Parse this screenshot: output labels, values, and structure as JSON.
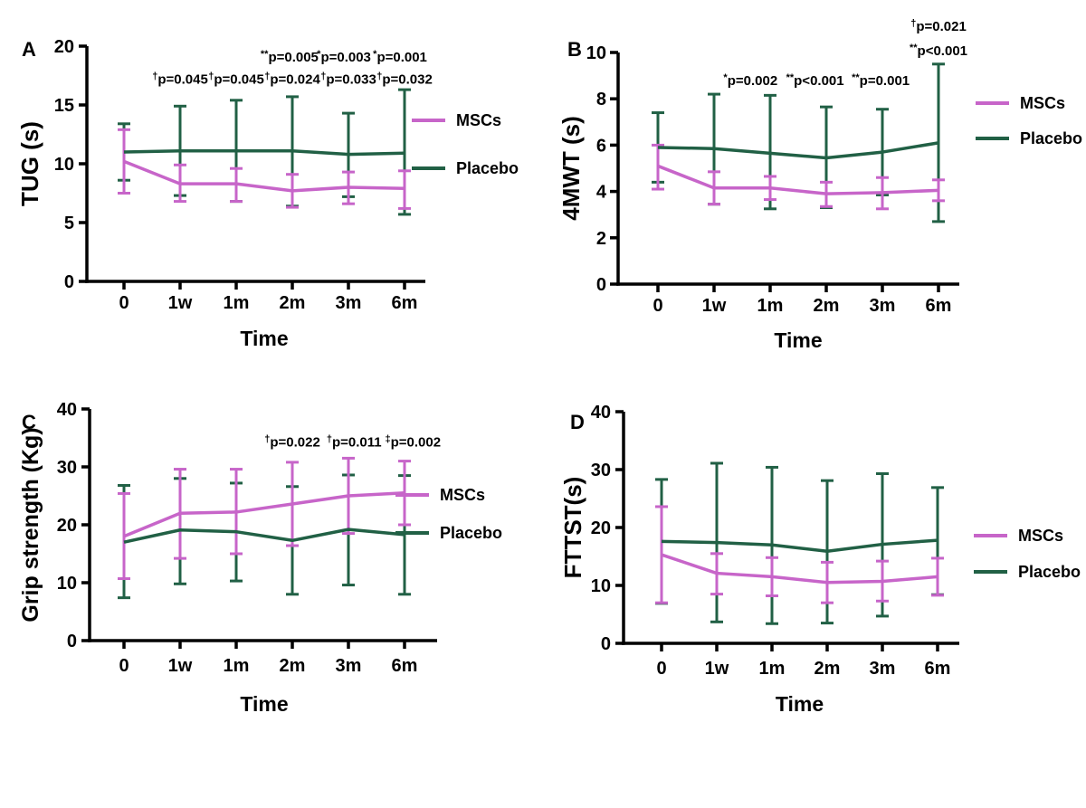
{
  "figure": {
    "background": "#FFFFFF"
  },
  "colors": {
    "mscs": "#C765C9",
    "placebo": "#216045",
    "axis": "#000000",
    "text": "#000000"
  },
  "chart_data": [
    {
      "type": "line",
      "panel_label": "A",
      "ylabel": "TUG (s)",
      "xlabel": "Time",
      "categories": [
        "0",
        "1w",
        "1m",
        "2m",
        "3m",
        "6m"
      ],
      "ylim": [
        0,
        20
      ],
      "yticks": [
        0,
        5,
        10,
        15,
        20
      ],
      "grid": false,
      "legend_position": "right",
      "series": [
        {
          "name": "MSCs",
          "color": "mscs",
          "values": [
            10.2,
            8.3,
            8.3,
            7.7,
            8.0,
            7.9
          ],
          "err_lo": [
            7.5,
            6.8,
            6.8,
            6.3,
            6.6,
            6.2
          ],
          "err_hi": [
            12.9,
            9.9,
            9.6,
            9.1,
            9.3,
            9.4
          ]
        },
        {
          "name": "Placebo",
          "color": "placebo",
          "values": [
            11.0,
            11.1,
            11.1,
            11.1,
            10.8,
            10.9
          ],
          "err_lo": [
            8.6,
            7.3,
            6.8,
            6.4,
            7.2,
            5.7
          ],
          "err_hi": [
            13.4,
            14.9,
            15.4,
            15.7,
            14.3,
            16.3
          ]
        }
      ],
      "annotations": [
        {
          "sup": "**",
          "text": "p=0.005",
          "cat": 2.95,
          "y": 18.7
        },
        {
          "sup": "*",
          "text": "p=0.003",
          "cat": 3.92,
          "y": 18.7
        },
        {
          "sup": "*",
          "text": "p=0.001",
          "cat": 4.92,
          "y": 18.7
        },
        {
          "sup": "†",
          "text": "p=0.045",
          "cat": 1.0,
          "y": 16.8
        },
        {
          "sup": "†",
          "text": "p=0.045",
          "cat": 2.0,
          "y": 16.8
        },
        {
          "sup": "†",
          "text": "p=0.024",
          "cat": 3.0,
          "y": 16.8
        },
        {
          "sup": "†",
          "text": "p=0.033",
          "cat": 4.0,
          "y": 16.8
        },
        {
          "sup": "†",
          "text": "p=0.032",
          "cat": 5.0,
          "y": 16.8
        }
      ]
    },
    {
      "type": "line",
      "panel_label": "B",
      "ylabel": "4MWT (s)",
      "xlabel": "Time",
      "categories": [
        "0",
        "1w",
        "1m",
        "2m",
        "3m",
        "6m"
      ],
      "ylim": [
        0,
        10
      ],
      "yticks": [
        0,
        2,
        4,
        6,
        8,
        10
      ],
      "grid": false,
      "legend_position": "right",
      "series": [
        {
          "name": "MSCs",
          "color": "mscs",
          "values": [
            5.1,
            4.15,
            4.15,
            3.9,
            3.95,
            4.05
          ],
          "err_lo": [
            4.1,
            3.45,
            3.65,
            3.35,
            3.25,
            3.6
          ],
          "err_hi": [
            6.0,
            4.85,
            4.65,
            4.4,
            4.6,
            4.5
          ]
        },
        {
          "name": "Placebo",
          "color": "placebo",
          "values": [
            5.9,
            5.85,
            5.65,
            5.45,
            5.7,
            6.1
          ],
          "err_lo": [
            4.4,
            3.45,
            3.25,
            3.3,
            3.85,
            2.7
          ],
          "err_hi": [
            7.4,
            8.2,
            8.15,
            7.65,
            7.55,
            9.5
          ]
        }
      ],
      "annotations": [
        {
          "sup": "*",
          "text": "p=0.002",
          "cat": 1.65,
          "y": 8.6
        },
        {
          "sup": "**",
          "text": "p<0.001",
          "cat": 2.8,
          "y": 8.6
        },
        {
          "sup": "**",
          "text": "p=0.001",
          "cat": 3.97,
          "y": 8.6
        },
        {
          "sup": "†",
          "text": "p=0.021",
          "cat": 5.0,
          "y": 10.93
        },
        {
          "sup": "**",
          "text": "p<0.001",
          "cat": 5.0,
          "y": 9.88
        }
      ]
    },
    {
      "type": "line",
      "panel_label": "C",
      "ylabel": "Grip strength (Kg)",
      "xlabel": "Time",
      "categories": [
        "0",
        "1w",
        "1m",
        "2m",
        "3m",
        "6m"
      ],
      "ylim": [
        0,
        40
      ],
      "yticks": [
        0,
        10,
        20,
        30,
        40
      ],
      "grid": false,
      "legend_position": "right",
      "series": [
        {
          "name": "MSCs",
          "color": "mscs",
          "values": [
            18.0,
            22.0,
            22.2,
            23.6,
            25.0,
            25.5
          ],
          "err_lo": [
            10.7,
            14.2,
            15.0,
            16.4,
            18.5,
            20.0
          ],
          "err_hi": [
            25.4,
            29.6,
            29.6,
            30.8,
            31.5,
            31.0
          ]
        },
        {
          "name": "Placebo",
          "color": "placebo",
          "values": [
            17.0,
            19.1,
            18.8,
            17.3,
            19.2,
            18.3
          ],
          "err_lo": [
            7.4,
            9.8,
            10.3,
            8.0,
            9.6,
            8.0
          ],
          "err_hi": [
            26.8,
            28.0,
            27.2,
            26.6,
            28.6,
            28.5
          ]
        }
      ],
      "annotations": [
        {
          "sup": "†",
          "text": "p=0.022",
          "cat": 3.0,
          "y": 33.5
        },
        {
          "sup": "†",
          "text": "p=0.011",
          "cat": 4.1,
          "y": 33.5
        },
        {
          "sup": "‡",
          "text": "p=0.002",
          "cat": 5.15,
          "y": 33.5
        }
      ]
    },
    {
      "type": "line",
      "panel_label": "D",
      "ylabel": "FTTST(s)",
      "xlabel": "Time",
      "categories": [
        "0",
        "1w",
        "1m",
        "2m",
        "3m",
        "6m"
      ],
      "ylim": [
        0,
        40
      ],
      "yticks": [
        0,
        10,
        20,
        30,
        40
      ],
      "grid": false,
      "legend_position": "right",
      "series": [
        {
          "name": "MSCs",
          "color": "mscs",
          "values": [
            15.3,
            12.1,
            11.5,
            10.5,
            10.7,
            11.5
          ],
          "err_lo": [
            7.0,
            8.5,
            8.2,
            7.0,
            7.3,
            8.3
          ],
          "err_hi": [
            23.6,
            15.5,
            14.8,
            14.0,
            14.2,
            14.7
          ]
        },
        {
          "name": "Placebo",
          "color": "placebo",
          "values": [
            17.6,
            17.4,
            17.0,
            15.9,
            17.1,
            17.8
          ],
          "err_lo": [
            6.9,
            3.7,
            3.4,
            3.5,
            4.7,
            8.4
          ],
          "err_hi": [
            28.3,
            31.1,
            30.4,
            28.1,
            29.3,
            26.9
          ]
        }
      ],
      "annotations": []
    }
  ]
}
